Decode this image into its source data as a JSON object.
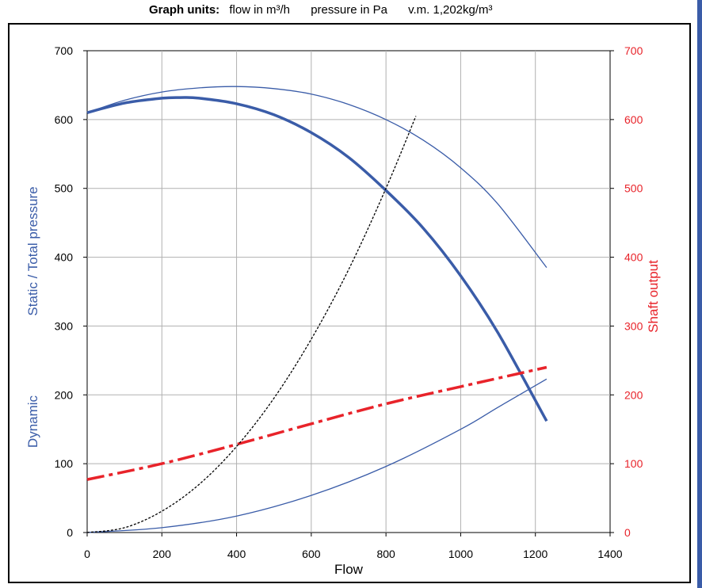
{
  "header": {
    "label": "Graph units:",
    "flow_unit": "flow in m³/h",
    "pressure_unit": "pressure in Pa",
    "density": "v.m. 1,202kg/m³"
  },
  "colors": {
    "blue": "#3a5ca8",
    "red": "#e8232a",
    "grid": "#b0b0b0",
    "black": "#000000"
  },
  "chart_data": {
    "type": "line",
    "xlabel": "Flow",
    "ylabel_left_top": "Static / Total pressure",
    "ylabel_left_bottom": "Dynamic",
    "ylabel_right": "Shaft output",
    "xlim": [
      0,
      1400
    ],
    "ylim": [
      0,
      700
    ],
    "ylim_right": [
      0,
      700
    ],
    "x_ticks": [
      0,
      200,
      400,
      600,
      800,
      1000,
      1200,
      1400
    ],
    "y_ticks": [
      0,
      100,
      200,
      300,
      400,
      500,
      600,
      700
    ],
    "y_ticks_right": [
      0,
      100,
      200,
      300,
      400,
      500,
      600,
      700
    ],
    "grid": true,
    "series": [
      {
        "color": "blue",
        "width": 1.3,
        "dash": "none",
        "axis": "left",
        "x": [
          0,
          100,
          200,
          300,
          400,
          500,
          600,
          700,
          800,
          900,
          1000,
          1100,
          1230
        ],
        "y": [
          610,
          628,
          640,
          646,
          648,
          645,
          637,
          622,
          600,
          570,
          530,
          477,
          385
        ]
      },
      {
        "color": "blue",
        "width": 3.5,
        "dash": "none",
        "axis": "left",
        "x": [
          0,
          100,
          200,
          250,
          300,
          400,
          500,
          600,
          700,
          800,
          900,
          1000,
          1100,
          1230
        ],
        "y": [
          610,
          624,
          631,
          632,
          631,
          623,
          607,
          581,
          545,
          497,
          442,
          373,
          290,
          162
        ]
      },
      {
        "color": "blue",
        "width": 1.3,
        "dash": "none",
        "axis": "left",
        "x": [
          0,
          200,
          400,
          600,
          800,
          1000,
          1100,
          1230
        ],
        "y": [
          0,
          7,
          24,
          54,
          96,
          150,
          182,
          223
        ]
      },
      {
        "color": "red",
        "width": 3.5,
        "dash": "dashdot",
        "axis": "right",
        "x": [
          0,
          200,
          400,
          600,
          800,
          1000,
          1230
        ],
        "y": [
          77,
          100,
          128,
          158,
          187,
          212,
          240
        ]
      },
      {
        "color": "black",
        "width": 1.3,
        "dash": "dot",
        "axis": "left",
        "x": [
          0,
          100,
          200,
          300,
          400,
          500,
          600,
          700,
          800,
          880
        ],
        "y": [
          0,
          7,
          31,
          70,
          125,
          195,
          281,
          382,
          500,
          605
        ]
      }
    ]
  }
}
